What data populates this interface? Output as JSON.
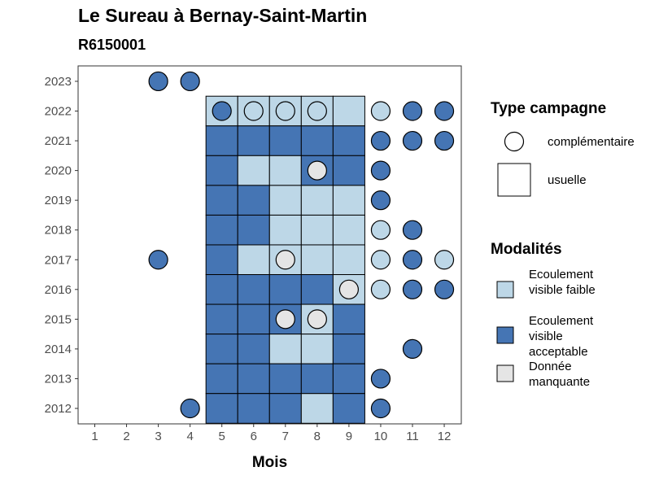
{
  "title": "Le Sureau à Bernay-Saint-Martin",
  "subtitle": "R6150001",
  "colors": {
    "faible": "#bdd7e7",
    "acceptable": "#4575b4",
    "manquante": "#e5e5e5",
    "outline": "#000000"
  },
  "legend": {
    "type_title": "Type campagne",
    "type_items": [
      {
        "key": "complementaire",
        "label": "complémentaire",
        "shape": "circle"
      },
      {
        "key": "usuelle",
        "label": "usuelle",
        "shape": "square"
      }
    ],
    "mod_title": "Modalités",
    "mod_items": [
      {
        "key": "faible",
        "label": "Ecoulement visible faible"
      },
      {
        "key": "acceptable",
        "label": "Ecoulement visible acceptable"
      },
      {
        "key": "manquante",
        "label": "Donnée manquante"
      }
    ]
  },
  "chart_data": {
    "type": "heatmap",
    "xlabel": "Mois",
    "ylabel": "",
    "x_ticks": [
      "1",
      "2",
      "3",
      "4",
      "5",
      "6",
      "7",
      "8",
      "9",
      "10",
      "11",
      "12"
    ],
    "y_ticks": [
      "2012",
      "2013",
      "2014",
      "2015",
      "2016",
      "2017",
      "2018",
      "2019",
      "2020",
      "2021",
      "2022",
      "2023"
    ],
    "squares": [
      {
        "year": 2022,
        "month": 5,
        "value": "faible"
      },
      {
        "year": 2022,
        "month": 6,
        "value": "faible"
      },
      {
        "year": 2022,
        "month": 7,
        "value": "faible"
      },
      {
        "year": 2022,
        "month": 8,
        "value": "faible"
      },
      {
        "year": 2022,
        "month": 9,
        "value": "faible"
      },
      {
        "year": 2021,
        "month": 5,
        "value": "acceptable"
      },
      {
        "year": 2021,
        "month": 6,
        "value": "acceptable"
      },
      {
        "year": 2021,
        "month": 7,
        "value": "acceptable"
      },
      {
        "year": 2021,
        "month": 8,
        "value": "acceptable"
      },
      {
        "year": 2021,
        "month": 9,
        "value": "acceptable"
      },
      {
        "year": 2020,
        "month": 5,
        "value": "acceptable"
      },
      {
        "year": 2020,
        "month": 6,
        "value": "faible"
      },
      {
        "year": 2020,
        "month": 7,
        "value": "faible"
      },
      {
        "year": 2020,
        "month": 8,
        "value": "acceptable"
      },
      {
        "year": 2020,
        "month": 9,
        "value": "acceptable"
      },
      {
        "year": 2019,
        "month": 5,
        "value": "acceptable"
      },
      {
        "year": 2019,
        "month": 6,
        "value": "acceptable"
      },
      {
        "year": 2019,
        "month": 7,
        "value": "faible"
      },
      {
        "year": 2019,
        "month": 8,
        "value": "faible"
      },
      {
        "year": 2019,
        "month": 9,
        "value": "faible"
      },
      {
        "year": 2018,
        "month": 5,
        "value": "acceptable"
      },
      {
        "year": 2018,
        "month": 6,
        "value": "acceptable"
      },
      {
        "year": 2018,
        "month": 7,
        "value": "faible"
      },
      {
        "year": 2018,
        "month": 8,
        "value": "faible"
      },
      {
        "year": 2018,
        "month": 9,
        "value": "faible"
      },
      {
        "year": 2017,
        "month": 5,
        "value": "acceptable"
      },
      {
        "year": 2017,
        "month": 6,
        "value": "faible"
      },
      {
        "year": 2017,
        "month": 7,
        "value": "faible"
      },
      {
        "year": 2017,
        "month": 8,
        "value": "faible"
      },
      {
        "year": 2017,
        "month": 9,
        "value": "faible"
      },
      {
        "year": 2016,
        "month": 5,
        "value": "acceptable"
      },
      {
        "year": 2016,
        "month": 6,
        "value": "acceptable"
      },
      {
        "year": 2016,
        "month": 7,
        "value": "acceptable"
      },
      {
        "year": 2016,
        "month": 8,
        "value": "acceptable"
      },
      {
        "year": 2016,
        "month": 9,
        "value": "faible"
      },
      {
        "year": 2015,
        "month": 5,
        "value": "acceptable"
      },
      {
        "year": 2015,
        "month": 6,
        "value": "acceptable"
      },
      {
        "year": 2015,
        "month": 7,
        "value": "acceptable"
      },
      {
        "year": 2015,
        "month": 8,
        "value": "faible"
      },
      {
        "year": 2015,
        "month": 9,
        "value": "acceptable"
      },
      {
        "year": 2014,
        "month": 5,
        "value": "acceptable"
      },
      {
        "year": 2014,
        "month": 6,
        "value": "acceptable"
      },
      {
        "year": 2014,
        "month": 7,
        "value": "faible"
      },
      {
        "year": 2014,
        "month": 8,
        "value": "faible"
      },
      {
        "year": 2014,
        "month": 9,
        "value": "acceptable"
      },
      {
        "year": 2013,
        "month": 5,
        "value": "acceptable"
      },
      {
        "year": 2013,
        "month": 6,
        "value": "acceptable"
      },
      {
        "year": 2013,
        "month": 7,
        "value": "acceptable"
      },
      {
        "year": 2013,
        "month": 8,
        "value": "acceptable"
      },
      {
        "year": 2013,
        "month": 9,
        "value": "acceptable"
      },
      {
        "year": 2012,
        "month": 5,
        "value": "acceptable"
      },
      {
        "year": 2012,
        "month": 6,
        "value": "acceptable"
      },
      {
        "year": 2012,
        "month": 7,
        "value": "acceptable"
      },
      {
        "year": 2012,
        "month": 8,
        "value": "faible"
      },
      {
        "year": 2012,
        "month": 9,
        "value": "acceptable"
      }
    ],
    "circles": [
      {
        "year": 2023,
        "month": 3,
        "value": "acceptable"
      },
      {
        "year": 2023,
        "month": 4,
        "value": "acceptable"
      },
      {
        "year": 2022,
        "month": 5,
        "value": "acceptable"
      },
      {
        "year": 2022,
        "month": 6,
        "value": "faible"
      },
      {
        "year": 2022,
        "month": 7,
        "value": "faible"
      },
      {
        "year": 2022,
        "month": 8,
        "value": "faible"
      },
      {
        "year": 2022,
        "month": 10,
        "value": "faible"
      },
      {
        "year": 2022,
        "month": 11,
        "value": "acceptable"
      },
      {
        "year": 2022,
        "month": 12,
        "value": "acceptable"
      },
      {
        "year": 2021,
        "month": 10,
        "value": "acceptable"
      },
      {
        "year": 2021,
        "month": 11,
        "value": "acceptable"
      },
      {
        "year": 2021,
        "month": 12,
        "value": "acceptable"
      },
      {
        "year": 2020,
        "month": 8,
        "value": "manquante"
      },
      {
        "year": 2020,
        "month": 10,
        "value": "acceptable"
      },
      {
        "year": 2019,
        "month": 10,
        "value": "acceptable"
      },
      {
        "year": 2018,
        "month": 10,
        "value": "faible"
      },
      {
        "year": 2018,
        "month": 11,
        "value": "acceptable"
      },
      {
        "year": 2017,
        "month": 3,
        "value": "acceptable"
      },
      {
        "year": 2017,
        "month": 7,
        "value": "manquante"
      },
      {
        "year": 2017,
        "month": 10,
        "value": "faible"
      },
      {
        "year": 2017,
        "month": 11,
        "value": "acceptable"
      },
      {
        "year": 2017,
        "month": 12,
        "value": "faible"
      },
      {
        "year": 2016,
        "month": 9,
        "value": "manquante"
      },
      {
        "year": 2016,
        "month": 10,
        "value": "faible"
      },
      {
        "year": 2016,
        "month": 11,
        "value": "acceptable"
      },
      {
        "year": 2016,
        "month": 12,
        "value": "acceptable"
      },
      {
        "year": 2015,
        "month": 7,
        "value": "manquante"
      },
      {
        "year": 2015,
        "month": 8,
        "value": "manquante"
      },
      {
        "year": 2014,
        "month": 11,
        "value": "acceptable"
      },
      {
        "year": 2013,
        "month": 10,
        "value": "acceptable"
      },
      {
        "year": 2012,
        "month": 4,
        "value": "acceptable"
      },
      {
        "year": 2012,
        "month": 10,
        "value": "acceptable"
      }
    ],
    "grid": false,
    "legend_position": "right"
  }
}
